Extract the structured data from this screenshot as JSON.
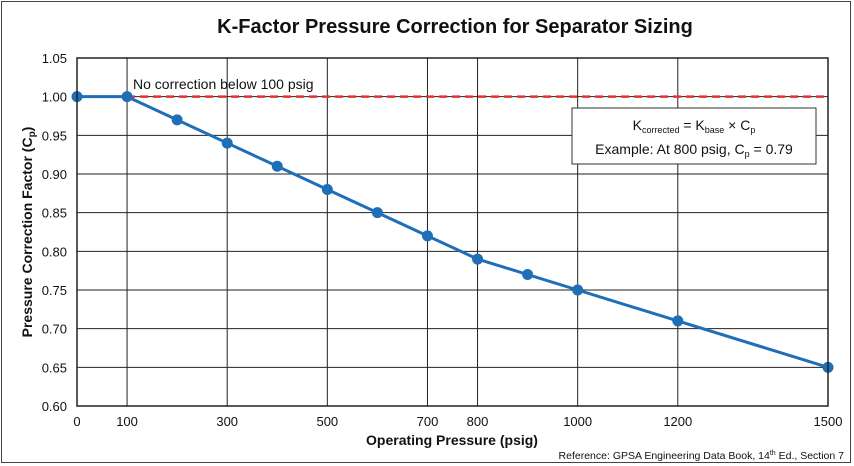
{
  "chart_data": {
    "type": "line",
    "title": "K-Factor Pressure Correction for Separator Sizing",
    "xlabel": "Operating Pressure (psig)",
    "ylabel": {
      "main": "Pressure Correction Factor (C",
      "sub": "p",
      "end": ")"
    },
    "xlim": [
      0,
      1500
    ],
    "ylim": [
      0.6,
      1.05
    ],
    "x_ticks": [
      0,
      100,
      300,
      500,
      700,
      800,
      1000,
      1200,
      1500
    ],
    "y_ticks": [
      "0.60",
      "0.65",
      "0.70",
      "0.75",
      "0.80",
      "0.85",
      "0.90",
      "0.95",
      "1.00",
      "1.05"
    ],
    "grid": true,
    "series": [
      {
        "x": [
          0,
          100,
          200,
          300,
          400,
          500,
          600,
          700,
          800,
          900,
          1000,
          1200,
          1500
        ],
        "y": [
          1.0,
          1.0,
          0.97,
          0.94,
          0.91,
          0.88,
          0.85,
          0.82,
          0.79,
          0.77,
          0.75,
          0.71,
          0.65
        ],
        "color": "#1f6fb8"
      }
    ],
    "reference_line": {
      "y": 1.0,
      "color": "#e8302a",
      "style": "dashed"
    },
    "annotations": {
      "no_correction": "No correction below 100 psig",
      "formula": {
        "k1": "K",
        "s1": "corrected",
        "eq": " = K",
        "s2": "base",
        "rest": " × C",
        "s3": "p"
      },
      "example": {
        "pre": "Example: At 800 psig, C",
        "sub": "p",
        "post": " = 0.79"
      }
    },
    "reference": {
      "pre": "Reference: GPSA Engineering Data Book, 14",
      "sup": "th",
      "post": " Ed., Section 7"
    }
  }
}
